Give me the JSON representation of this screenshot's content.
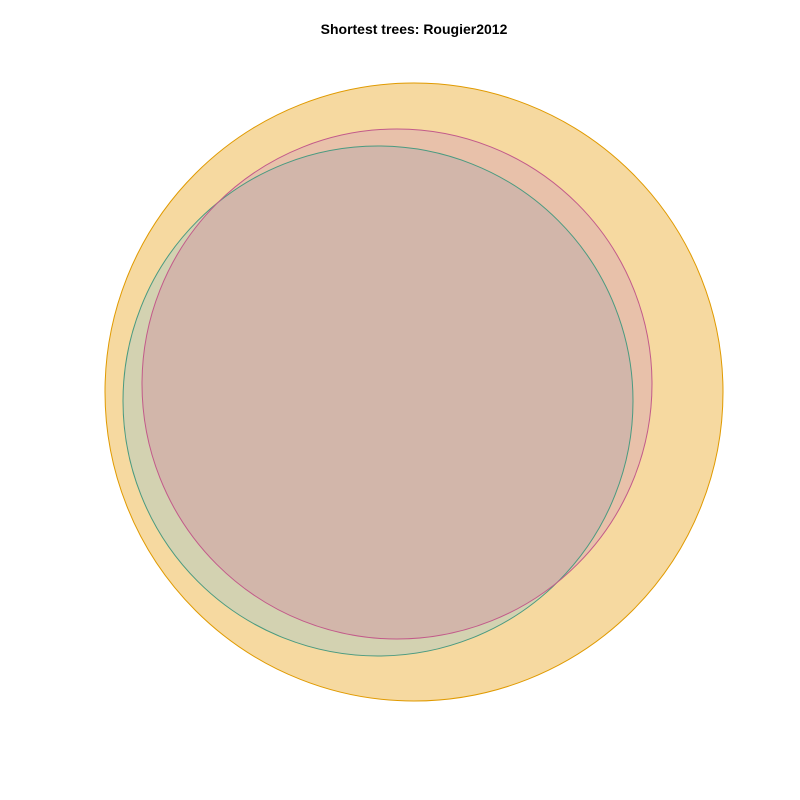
{
  "title": "Shortest trees: Rougier2012",
  "sets": [
    {
      "id": "outer",
      "fill": "#f6d9a0",
      "stroke": "#e09a00"
    },
    {
      "id": "green",
      "fill": "#b5bf8f",
      "stroke": "#4a9a80"
    },
    {
      "id": "pink",
      "fill": "#e0a39a",
      "stroke": "#c25a8a"
    }
  ],
  "overlap_colors": {
    "green_and_pink": "#c6a898",
    "pink_on_outer": "#e8c1aa",
    "green_on_outer": "#d3d2b1",
    "all_three": "#d2b6aa"
  }
}
